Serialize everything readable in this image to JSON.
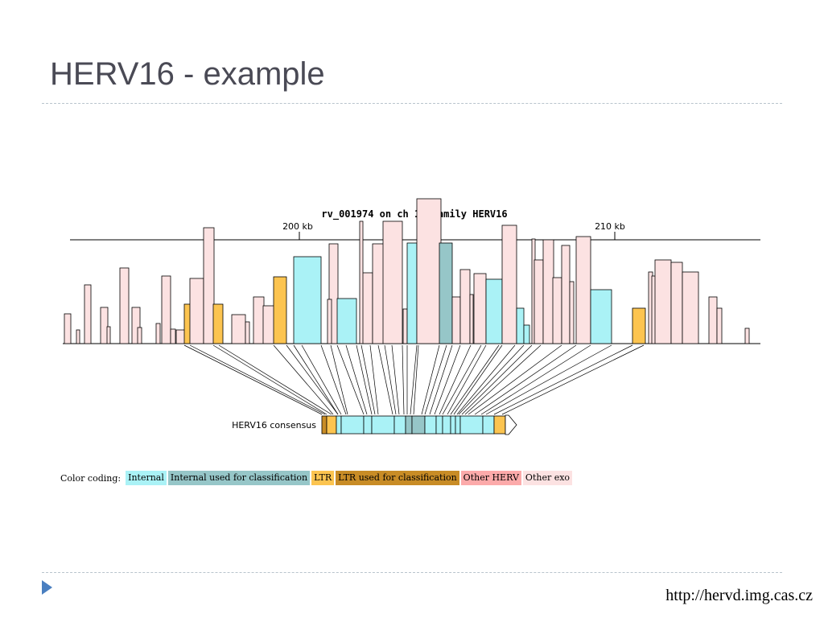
{
  "slide": {
    "title": "HERV16 - example",
    "footer_link": "http://hervd.img.cas.cz"
  },
  "diagram": {
    "title": "rv_001974 on ch 12 family HERV16",
    "ticks": [
      {
        "label": "200 kb",
        "kb": 200
      },
      {
        "label": "210 kb",
        "kb": 210
      }
    ],
    "consensus_label": "HERV16 consensus",
    "colors": {
      "internal": "#aaf2f6",
      "internal_classification": "#96c6c8",
      "ltr": "#fcc450",
      "ltr_classification": "#c88c26",
      "other_herv": "#fcaaaa",
      "other_exo": "#fce2e2"
    },
    "legend": {
      "label": "Color coding:",
      "items": [
        {
          "key": "internal",
          "label": "Internal"
        },
        {
          "key": "internal_classification",
          "label": "Internal used for classification"
        },
        {
          "key": "ltr",
          "label": "LTR"
        },
        {
          "key": "ltr_classification",
          "label": "LTR used for classification"
        },
        {
          "key": "other_herv",
          "label": "Other HERV"
        },
        {
          "key": "other_exo",
          "label": "Other exo"
        }
      ]
    }
  }
}
